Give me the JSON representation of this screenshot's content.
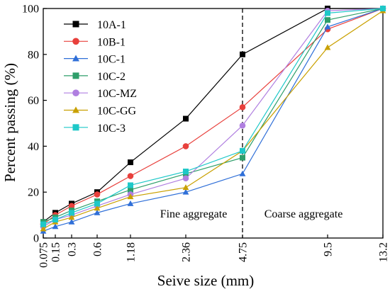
{
  "chart_data": {
    "type": "line",
    "xlabel": "Seive size (mm)",
    "ylabel": "Percent passing (%)",
    "x_scale": "categorical",
    "categories": [
      "0.075",
      "0.15",
      "0.3",
      "0.6",
      "1.18",
      "2.36",
      "4.75",
      "9.5",
      "13.2"
    ],
    "ylim": [
      0,
      100
    ],
    "yticks": [
      "0",
      "20",
      "40",
      "60",
      "80",
      "100"
    ],
    "grid": false,
    "legend_position": "top-left",
    "series": [
      {
        "name": "10A-1",
        "color": "#000000",
        "marker": "square",
        "values": [
          7,
          11,
          15,
          20,
          33,
          52,
          80,
          100,
          100
        ]
      },
      {
        "name": "10B-1",
        "color": "#e8403c",
        "marker": "circle",
        "values": [
          6,
          10,
          14,
          19,
          27,
          40,
          57,
          91,
          100
        ]
      },
      {
        "name": "10C-1",
        "color": "#2f6fd8",
        "marker": "triangle",
        "values": [
          3,
          5,
          7,
          11,
          15,
          20,
          28,
          92,
          100
        ]
      },
      {
        "name": "10C-2",
        "color": "#2e9e6a",
        "marker": "square",
        "values": [
          7,
          9,
          12,
          16,
          21,
          28,
          35,
          95,
          100
        ]
      },
      {
        "name": "10C-MZ",
        "color": "#b07fe0",
        "marker": "circle",
        "values": [
          5,
          8,
          10,
          14,
          19,
          26,
          49,
          99,
          100
        ]
      },
      {
        "name": "10C-GG",
        "color": "#c9a000",
        "marker": "triangle",
        "values": [
          4,
          7,
          9,
          13,
          18,
          22,
          38,
          83,
          99
        ]
      },
      {
        "name": "10C-3",
        "color": "#1ec8c8",
        "marker": "square",
        "values": [
          6,
          8,
          11,
          15,
          23,
          29,
          38,
          98,
          100
        ]
      }
    ],
    "divider_at": "4.75",
    "annotations": {
      "fine": "Fine aggregate",
      "coarse": "Coarse aggregate"
    }
  }
}
